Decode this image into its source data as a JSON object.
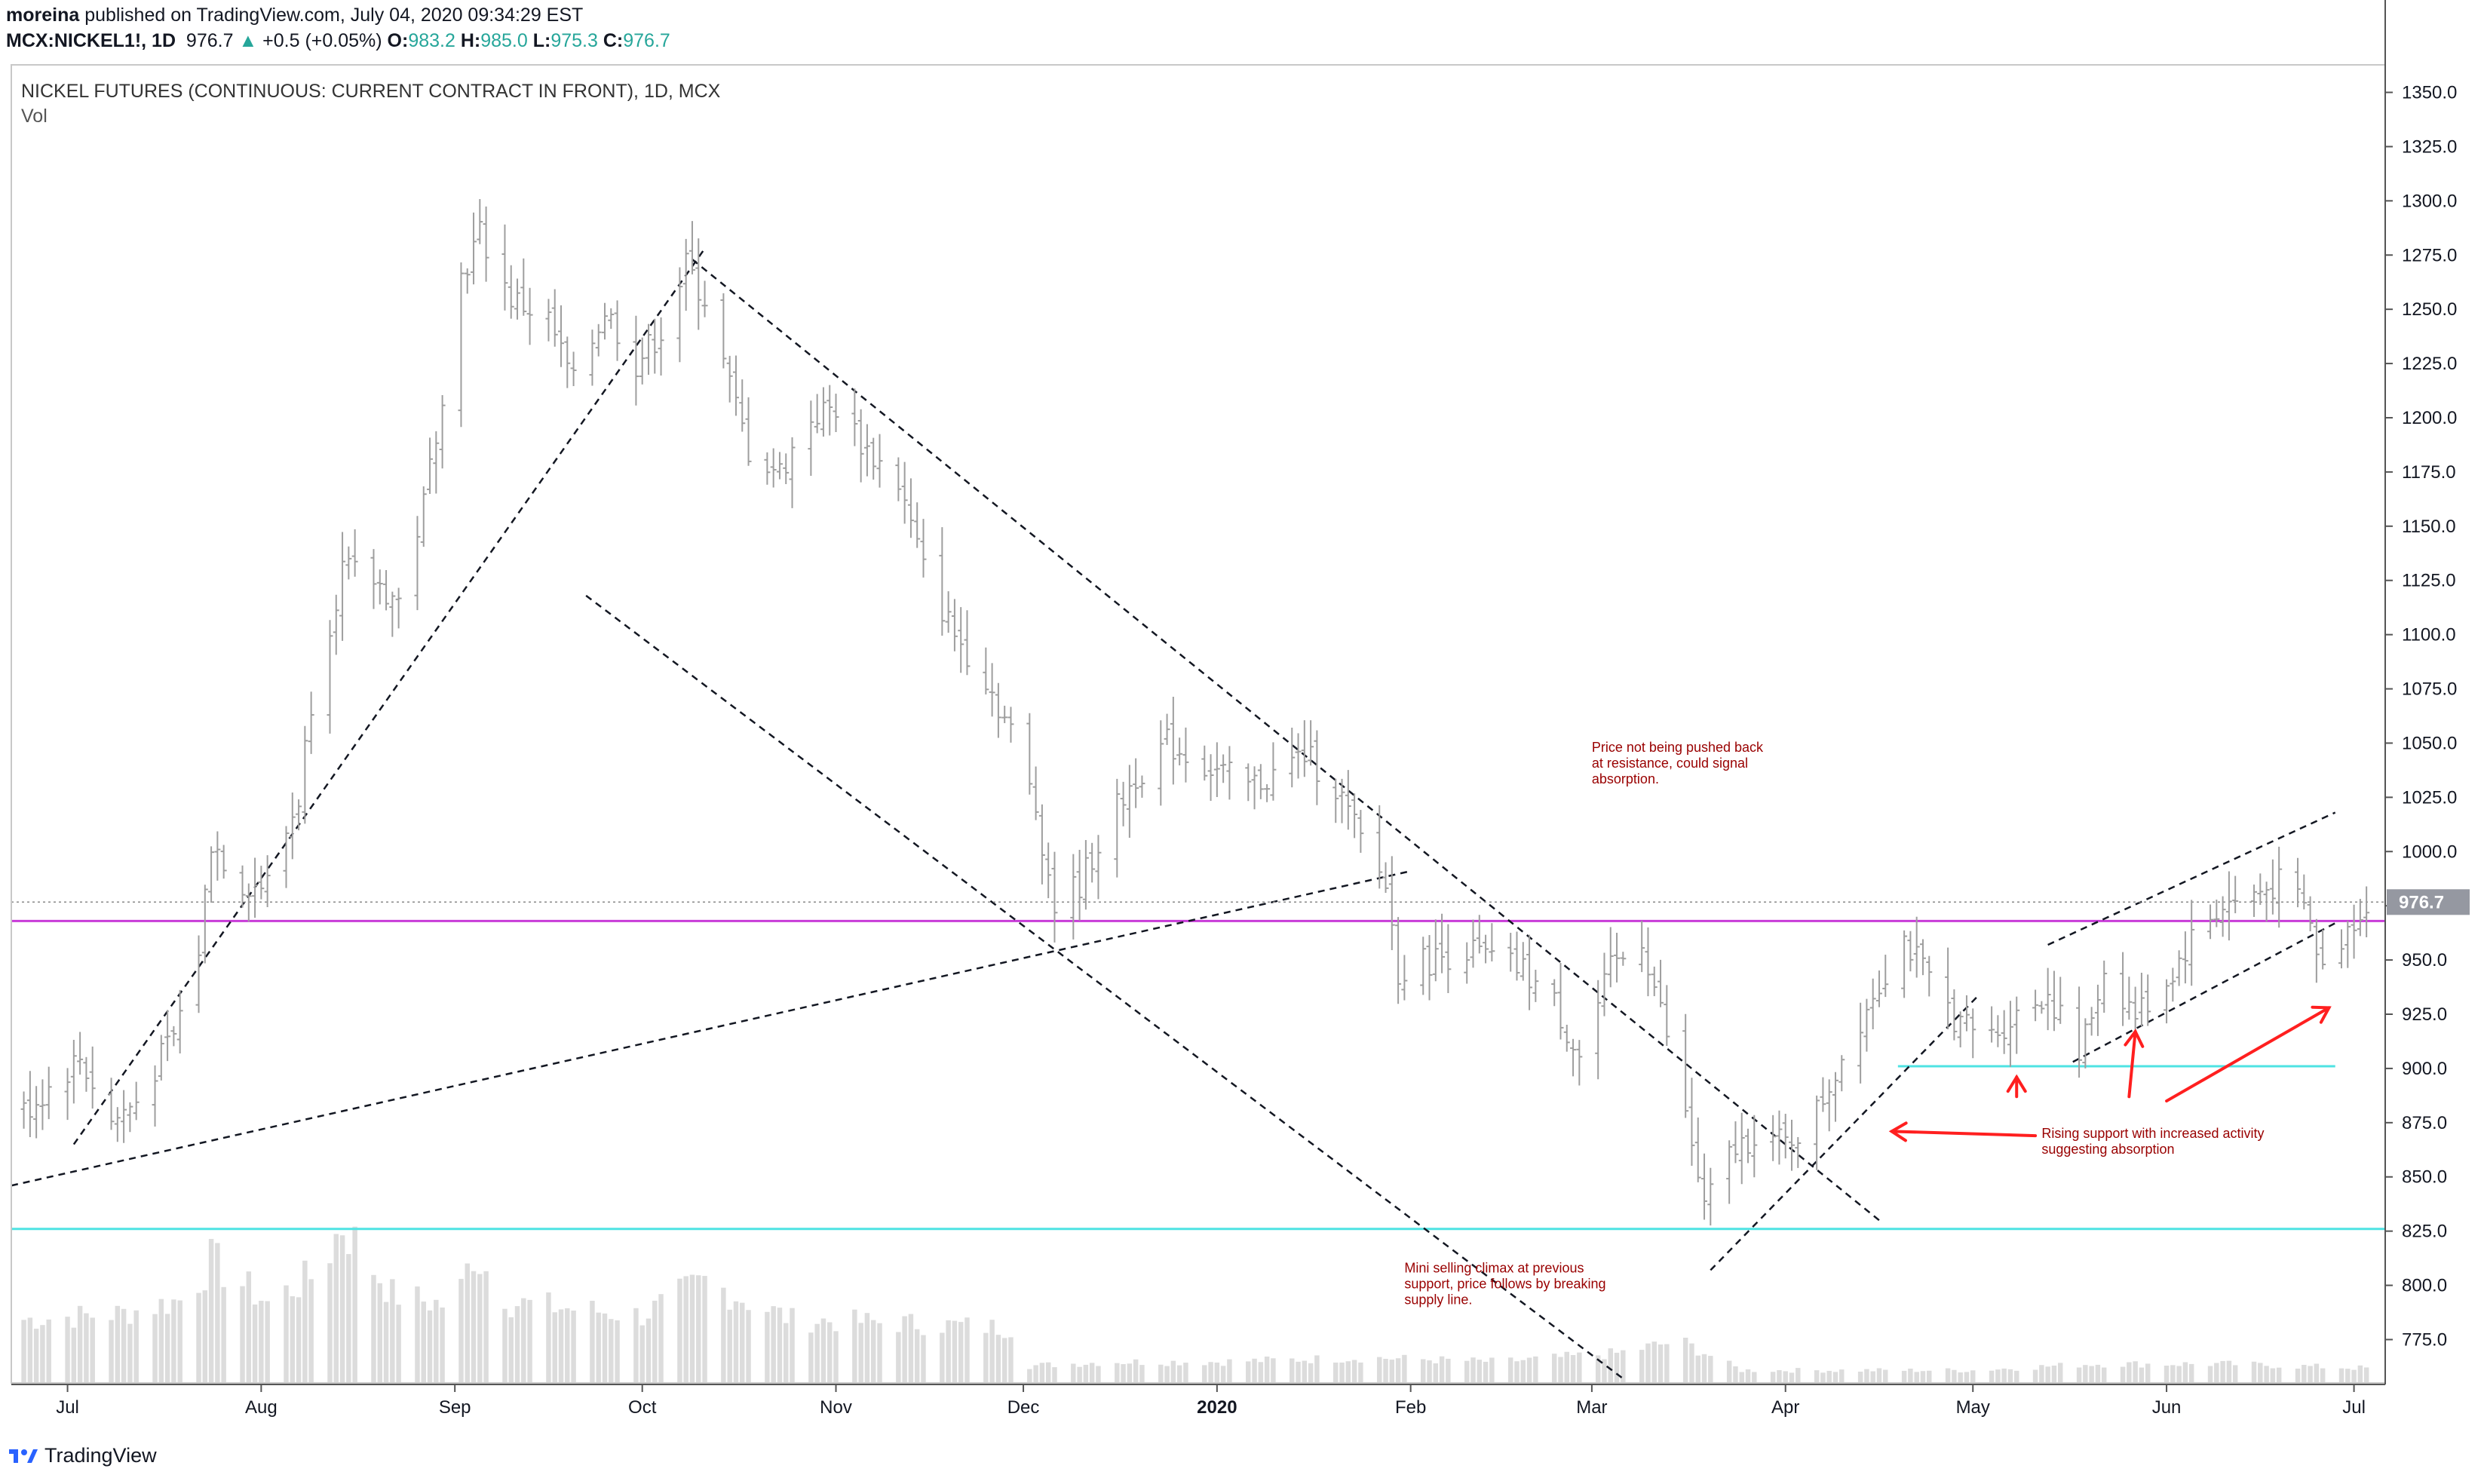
{
  "header": {
    "author": "moreina",
    "published": "published on TradingView.com, July 04, 2020 09:34:29 EST",
    "symbol_line": "MCX:NICKEL1!, 1D",
    "last": "976.7",
    "change_arrow": "▲",
    "change": "+0.5 (+0.05%)",
    "o_label": "O:",
    "o": "983.2",
    "h_label": "H:",
    "h": "985.0",
    "l_label": "L:",
    "l": "975.3",
    "c_label": "C:",
    "c": "976.7"
  },
  "legend": {
    "instrument": "NICKEL FUTURES (CONTINUOUS: CURRENT CONTRACT IN FRONT), 1D, MCX",
    "vol_label": "Vol"
  },
  "footer": {
    "brand": "TradingView"
  },
  "colors": {
    "bar": "#9e9e9e",
    "volume": "#dcdcdc",
    "magenta_level": "#c83bd8",
    "cyan_level": "#4fe3e3",
    "annotation_text": "#990000",
    "arrows": "#ff1f1f",
    "trendline": "#131722",
    "price_tag": "#9598a1"
  },
  "chart_data": {
    "type": "ohlc-bar",
    "price_axis": {
      "range": [
        755,
        1362
      ],
      "ticks": [
        "775.0",
        "800.0",
        "825.0",
        "850.0",
        "875.0",
        "900.0",
        "925.0",
        "950.0",
        "975.0",
        "1000.0",
        "1025.0",
        "1050.0",
        "1075.0",
        "1100.0",
        "1125.0",
        "1150.0",
        "1175.0",
        "1200.0",
        "1225.0",
        "1250.0",
        "1275.0",
        "1300.0",
        "1325.0",
        "1350.0"
      ],
      "last_price_label": "976.7",
      "last_price": 976.7
    },
    "time_axis": {
      "range": [
        "2019-06-22",
        "2020-07-06"
      ],
      "ticks": [
        {
          "label": "Jul",
          "date": "2019-07-01"
        },
        {
          "label": "Aug",
          "date": "2019-08-01"
        },
        {
          "label": "Sep",
          "date": "2019-09-01"
        },
        {
          "label": "Oct",
          "date": "2019-10-01"
        },
        {
          "label": "Nov",
          "date": "2019-11-01"
        },
        {
          "label": "Dec",
          "date": "2019-12-01"
        },
        {
          "label": "2020",
          "date": "2020-01-01"
        },
        {
          "label": "Feb",
          "date": "2020-02-01"
        },
        {
          "label": "Mar",
          "date": "2020-03-01"
        },
        {
          "label": "Apr",
          "date": "2020-04-01"
        },
        {
          "label": "May",
          "date": "2020-05-01"
        },
        {
          "label": "Jun",
          "date": "2020-06-01"
        },
        {
          "label": "Jul",
          "date": "2020-07-01"
        }
      ]
    },
    "close_path": [
      [
        "2019-06-24",
        880
      ],
      [
        "2019-07-03",
        905
      ],
      [
        "2019-07-08",
        875
      ],
      [
        "2019-07-12",
        885
      ],
      [
        "2019-07-18",
        915
      ],
      [
        "2019-07-22",
        955
      ],
      [
        "2019-07-24",
        1005
      ],
      [
        "2019-07-29",
        985
      ],
      [
        "2019-08-02",
        985
      ],
      [
        "2019-08-07",
        1025
      ],
      [
        "2019-08-09",
        1070
      ],
      [
        "2019-08-14",
        1130
      ],
      [
        "2019-08-19",
        1125
      ],
      [
        "2019-08-23",
        1115
      ],
      [
        "2019-08-27",
        1160
      ],
      [
        "2019-09-02",
        1265
      ],
      [
        "2019-09-05",
        1285
      ],
      [
        "2019-09-10",
        1255
      ],
      [
        "2019-09-16",
        1245
      ],
      [
        "2019-09-20",
        1215
      ],
      [
        "2019-09-25",
        1250
      ],
      [
        "2019-09-30",
        1225
      ],
      [
        "2019-10-04",
        1240
      ],
      [
        "2019-10-08",
        1270
      ],
      [
        "2019-10-11",
        1255
      ],
      [
        "2019-10-15",
        1215
      ],
      [
        "2019-10-18",
        1185
      ],
      [
        "2019-10-23",
        1175
      ],
      [
        "2019-10-28",
        1200
      ],
      [
        "2019-11-01",
        1205
      ],
      [
        "2019-11-06",
        1185
      ],
      [
        "2019-11-11",
        1170
      ],
      [
        "2019-11-15",
        1130
      ],
      [
        "2019-11-20",
        1100
      ],
      [
        "2019-11-25",
        1080
      ],
      [
        "2019-11-29",
        1055
      ],
      [
        "2019-12-03",
        1020
      ],
      [
        "2019-12-06",
        975
      ],
      [
        "2019-12-10",
        985
      ],
      [
        "2019-12-14",
        1010
      ],
      [
        "2019-12-19",
        1035
      ],
      [
        "2019-12-24",
        1050
      ],
      [
        "2019-12-30",
        1040
      ],
      [
        "2020-01-06",
        1030
      ],
      [
        "2020-01-10",
        1035
      ],
      [
        "2020-01-15",
        1045
      ],
      [
        "2020-01-20",
        1030
      ],
      [
        "2020-01-24",
        1005
      ],
      [
        "2020-01-28",
        985
      ],
      [
        "2020-01-30",
        945
      ],
      [
        "2020-02-04",
        950
      ],
      [
        "2020-02-10",
        955
      ],
      [
        "2020-02-14",
        950
      ],
      [
        "2020-02-19",
        945
      ],
      [
        "2020-02-24",
        930
      ],
      [
        "2020-02-28",
        905
      ],
      [
        "2020-03-04",
        945
      ],
      [
        "2020-03-09",
        960
      ],
      [
        "2020-03-13",
        915
      ],
      [
        "2020-03-17",
        865
      ],
      [
        "2020-03-19",
        835
      ],
      [
        "2020-03-23",
        860
      ],
      [
        "2020-03-27",
        870
      ],
      [
        "2020-04-01",
        865
      ],
      [
        "2020-04-06",
        880
      ],
      [
        "2020-04-10",
        905
      ],
      [
        "2020-04-15",
        935
      ],
      [
        "2020-04-20",
        960
      ],
      [
        "2020-04-24",
        940
      ],
      [
        "2020-04-29",
        920
      ],
      [
        "2020-05-04",
        915
      ],
      [
        "2020-05-08",
        925
      ],
      [
        "2020-05-13",
        935
      ],
      [
        "2020-05-18",
        905
      ],
      [
        "2020-05-22",
        945
      ],
      [
        "2020-05-27",
        925
      ],
      [
        "2020-06-01",
        940
      ],
      [
        "2020-06-05",
        960
      ],
      [
        "2020-06-10",
        975
      ],
      [
        "2020-06-15",
        980
      ],
      [
        "2020-06-19",
        985
      ],
      [
        "2020-06-23",
        975
      ],
      [
        "2020-06-26",
        945
      ],
      [
        "2020-06-30",
        965
      ],
      [
        "2020-07-03",
        977
      ]
    ],
    "volume_path": [
      [
        "2019-06-24",
        0.3
      ],
      [
        "2019-07-10",
        0.33
      ],
      [
        "2019-07-20",
        0.4
      ],
      [
        "2019-07-24",
        0.58
      ],
      [
        "2019-08-02",
        0.38
      ],
      [
        "2019-08-10",
        0.52
      ],
      [
        "2019-08-14",
        0.75
      ],
      [
        "2019-08-22",
        0.42
      ],
      [
        "2019-09-01",
        0.36
      ],
      [
        "2019-09-04",
        0.62
      ],
      [
        "2019-09-10",
        0.38
      ],
      [
        "2019-10-01",
        0.32
      ],
      [
        "2019-10-11",
        0.48
      ],
      [
        "2019-10-25",
        0.3
      ],
      [
        "2019-11-15",
        0.28
      ],
      [
        "2019-11-29",
        0.26
      ],
      [
        "2019-12-01",
        0.08
      ],
      [
        "2019-12-15",
        0.1
      ],
      [
        "2020-01-01",
        0.1
      ],
      [
        "2020-01-25",
        0.12
      ],
      [
        "2020-02-15",
        0.1
      ],
      [
        "2020-03-05",
        0.14
      ],
      [
        "2020-03-15",
        0.2
      ],
      [
        "2020-03-25",
        0.06
      ],
      [
        "2020-04-15",
        0.06
      ],
      [
        "2020-05-01",
        0.06
      ],
      [
        "2020-05-20",
        0.09
      ],
      [
        "2020-06-10",
        0.09
      ],
      [
        "2020-07-03",
        0.07
      ]
    ],
    "lines": [
      {
        "kind": "horizontal",
        "color": "magenta",
        "price": 968
      },
      {
        "kind": "horizontal",
        "color": "cyan",
        "price": 826
      },
      {
        "kind": "segment",
        "color": "cyan",
        "from": [
          "2020-04-19",
          901
        ],
        "to": [
          "2020-06-28",
          901
        ]
      },
      {
        "kind": "trend",
        "from": [
          "2019-07-02",
          865
        ],
        "to": [
          "2019-10-11",
          1278
        ]
      },
      {
        "kind": "trend",
        "from": [
          "2019-10-09",
          1273
        ],
        "to": [
          "2020-04-16",
          830
        ]
      },
      {
        "kind": "trend",
        "from": [
          "2019-09-22",
          1118
        ],
        "to": [
          "2020-03-06",
          757
        ]
      },
      {
        "kind": "trend",
        "from": [
          "2019-06-22",
          846
        ],
        "to": [
          "2020-02-01",
          991
        ]
      },
      {
        "kind": "trend",
        "from": [
          "2020-03-20",
          807
        ],
        "to": [
          "2020-05-02",
          934
        ]
      },
      {
        "kind": "trend",
        "from": [
          "2020-05-17",
          903
        ],
        "to": [
          "2020-06-28",
          967
        ]
      },
      {
        "kind": "trend",
        "from": [
          "2020-05-13",
          957
        ],
        "to": [
          "2020-06-28",
          1018
        ]
      }
    ],
    "arrows": [
      {
        "from": [
          "2020-05-11",
          869
        ],
        "to": [
          "2020-04-18",
          871
        ]
      },
      {
        "from": [
          "2020-05-08",
          887
        ],
        "to": [
          "2020-05-08",
          896
        ]
      },
      {
        "from": [
          "2020-05-26",
          887
        ],
        "to": [
          "2020-05-27",
          917
        ]
      },
      {
        "from": [
          "2020-06-01",
          885
        ],
        "to": [
          "2020-06-27",
          928
        ]
      }
    ],
    "annotations": [
      {
        "lines": [
          "Price not being pushed back",
          "at resistance, could signal",
          "absorption."
        ],
        "at": [
          "2020-03-01",
          1046
        ]
      },
      {
        "lines": [
          "Rising support with increased activity",
          "suggesting absorption"
        ],
        "at": [
          "2020-05-12",
          868
        ]
      },
      {
        "lines": [
          "Mini selling climax at previous",
          "support, price follows by breaking",
          "supply line."
        ],
        "at": [
          "2020-01-31",
          806
        ]
      }
    ]
  }
}
